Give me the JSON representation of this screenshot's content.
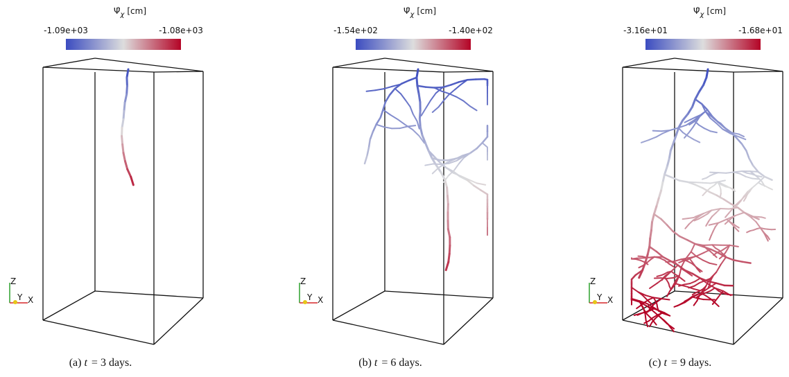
{
  "panels": [
    {
      "colorbar": {
        "symbol": "Ψ̂",
        "subscript": "χ",
        "unit": "[cm]",
        "min_label": "-1.09e+03",
        "max_label": "-1.08e+03"
      },
      "axes": {
        "z": "Z",
        "y": "Y",
        "x": "X"
      },
      "caption": {
        "label": "(a)",
        "variable": "t",
        "text": "= 3 days."
      }
    },
    {
      "colorbar": {
        "symbol": "Ψ̂",
        "subscript": "χ",
        "unit": "[cm]",
        "min_label": "-1.54e+02",
        "max_label": "-1.40e+02"
      },
      "axes": {
        "z": "Z",
        "y": "Y",
        "x": "X"
      },
      "caption": {
        "label": "(b)",
        "variable": "t",
        "text": "= 6 days."
      }
    },
    {
      "colorbar": {
        "symbol": "Ψ̂",
        "subscript": "χ",
        "unit": "[cm]",
        "min_label": "-3.16e+01",
        "max_label": "-1.68e+01"
      },
      "axes": {
        "z": "Z",
        "y": "Y",
        "x": "X"
      },
      "caption": {
        "label": "(c)",
        "variable": "t",
        "text": "= 9 days."
      }
    }
  ]
}
